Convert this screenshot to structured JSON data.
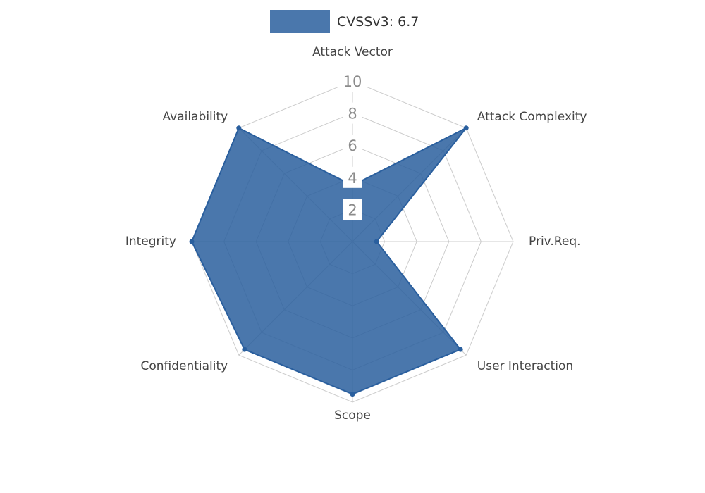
{
  "legend": {
    "label": "CVSSv3: 6.7",
    "color": "#4a77ac"
  },
  "chart_data": {
    "type": "radar",
    "title": "CVSSv3: 6.7",
    "legend_position": "top",
    "grid": true,
    "categories": [
      "Attack Vector",
      "Attack Complexity",
      "Priv.Req.",
      "User Interaction",
      "Scope",
      "Confidentiality",
      "Integrity",
      "Availability"
    ],
    "series": [
      {
        "name": "CVSSv3: 6.7",
        "values": [
          3.5,
          10,
          1.5,
          9.5,
          9.5,
          9.5,
          10,
          10
        ]
      }
    ],
    "rlim": [
      0,
      10
    ],
    "rticks": [
      2,
      4,
      6,
      8,
      10
    ],
    "colors": {
      "fill": "#2a5f9e",
      "fill_opacity": 0.85,
      "stroke": "#2a5f9e",
      "grid": "#cccccc",
      "tick": "#8b8b8b",
      "tick_backdrop": "#ffffff",
      "axis_label": "#444444"
    }
  }
}
